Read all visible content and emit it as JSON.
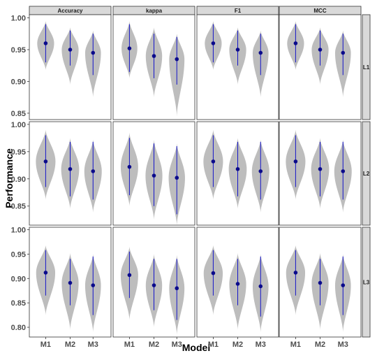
{
  "chart_data": {
    "type": "violin",
    "xlabel": "Model",
    "ylabel": "Performance",
    "metrics": [
      "Accuracy",
      "kappa",
      "F1",
      "MCC"
    ],
    "levels": [
      "L1",
      "L2",
      "L3"
    ],
    "models": [
      "M1",
      "M2",
      "M3"
    ],
    "rows": [
      {
        "level": "L1",
        "ylim": [
          0.84,
          1.005
        ],
        "yticks": [
          "0.85",
          "0.90",
          "0.95",
          "1.00"
        ],
        "ytick_values": [
          0.85,
          0.9,
          0.95,
          1.0
        ],
        "panels": [
          {
            "metric": "Accuracy",
            "values": [
              {
                "model": "M1",
                "mean": 0.96,
                "lo": 0.93,
                "hi": 0.99,
                "vmin": 0.918,
                "vmax": 0.995,
                "width": 0.62
              },
              {
                "model": "M2",
                "mean": 0.95,
                "lo": 0.925,
                "hi": 0.98,
                "vmin": 0.895,
                "vmax": 0.985,
                "width": 0.62
              },
              {
                "model": "M3",
                "mean": 0.945,
                "lo": 0.91,
                "hi": 0.975,
                "vmin": 0.875,
                "vmax": 0.98,
                "width": 0.58
              }
            ]
          },
          {
            "metric": "kappa",
            "values": [
              {
                "model": "M1",
                "mean": 0.952,
                "lo": 0.915,
                "hi": 0.99,
                "vmin": 0.905,
                "vmax": 0.995,
                "width": 0.58
              },
              {
                "model": "M2",
                "mean": 0.94,
                "lo": 0.905,
                "hi": 0.975,
                "vmin": 0.875,
                "vmax": 0.985,
                "width": 0.6
              },
              {
                "model": "M3",
                "mean": 0.935,
                "lo": 0.895,
                "hi": 0.97,
                "vmin": 0.845,
                "vmax": 0.975,
                "width": 0.56
              }
            ]
          },
          {
            "metric": "F1",
            "values": [
              {
                "model": "M1",
                "mean": 0.96,
                "lo": 0.93,
                "hi": 0.99,
                "vmin": 0.918,
                "vmax": 0.995,
                "width": 0.62
              },
              {
                "model": "M2",
                "mean": 0.95,
                "lo": 0.925,
                "hi": 0.98,
                "vmin": 0.895,
                "vmax": 0.985,
                "width": 0.62
              },
              {
                "model": "M3",
                "mean": 0.945,
                "lo": 0.91,
                "hi": 0.975,
                "vmin": 0.875,
                "vmax": 0.98,
                "width": 0.58
              }
            ]
          },
          {
            "metric": "MCC",
            "values": [
              {
                "model": "M1",
                "mean": 0.96,
                "lo": 0.93,
                "hi": 0.99,
                "vmin": 0.918,
                "vmax": 0.995,
                "width": 0.62
              },
              {
                "model": "M2",
                "mean": 0.95,
                "lo": 0.925,
                "hi": 0.98,
                "vmin": 0.895,
                "vmax": 0.985,
                "width": 0.62
              },
              {
                "model": "M3",
                "mean": 0.945,
                "lo": 0.91,
                "hi": 0.975,
                "vmin": 0.875,
                "vmax": 0.98,
                "width": 0.58
              }
            ]
          }
        ]
      },
      {
        "level": "L2",
        "ylim": [
          0.815,
          1.005
        ],
        "yticks": [
          "0.85",
          "0.90",
          "0.95",
          "1.00"
        ],
        "ytick_values": [
          0.85,
          0.9,
          0.95,
          1.0
        ],
        "panels": [
          {
            "metric": "Accuracy",
            "values": [
              {
                "model": "M1",
                "mean": 0.932,
                "lo": 0.885,
                "hi": 0.98,
                "vmin": 0.862,
                "vmax": 0.99,
                "width": 0.72
              },
              {
                "model": "M2",
                "mean": 0.918,
                "lo": 0.868,
                "hi": 0.968,
                "vmin": 0.845,
                "vmax": 0.975,
                "width": 0.66
              },
              {
                "model": "M3",
                "mean": 0.914,
                "lo": 0.862,
                "hi": 0.968,
                "vmin": 0.838,
                "vmax": 0.972,
                "width": 0.64
              }
            ]
          },
          {
            "metric": "kappa",
            "values": [
              {
                "model": "M1",
                "mean": 0.922,
                "lo": 0.87,
                "hi": 0.975,
                "vmin": 0.85,
                "vmax": 0.985,
                "width": 0.64
              },
              {
                "model": "M2",
                "mean": 0.906,
                "lo": 0.85,
                "hi": 0.965,
                "vmin": 0.825,
                "vmax": 0.972,
                "width": 0.62
              },
              {
                "model": "M3",
                "mean": 0.902,
                "lo": 0.835,
                "hi": 0.96,
                "vmin": 0.815,
                "vmax": 0.965,
                "width": 0.6
              }
            ]
          },
          {
            "metric": "F1",
            "values": [
              {
                "model": "M1",
                "mean": 0.932,
                "lo": 0.885,
                "hi": 0.98,
                "vmin": 0.862,
                "vmax": 0.99,
                "width": 0.72
              },
              {
                "model": "M2",
                "mean": 0.918,
                "lo": 0.868,
                "hi": 0.968,
                "vmin": 0.845,
                "vmax": 0.975,
                "width": 0.66
              },
              {
                "model": "M3",
                "mean": 0.914,
                "lo": 0.862,
                "hi": 0.968,
                "vmin": 0.838,
                "vmax": 0.972,
                "width": 0.64
              }
            ]
          },
          {
            "metric": "MCC",
            "values": [
              {
                "model": "M1",
                "mean": 0.932,
                "lo": 0.885,
                "hi": 0.98,
                "vmin": 0.862,
                "vmax": 0.99,
                "width": 0.72
              },
              {
                "model": "M2",
                "mean": 0.918,
                "lo": 0.868,
                "hi": 0.968,
                "vmin": 0.845,
                "vmax": 0.975,
                "width": 0.66
              },
              {
                "model": "M3",
                "mean": 0.914,
                "lo": 0.862,
                "hi": 0.968,
                "vmin": 0.838,
                "vmax": 0.972,
                "width": 0.64
              }
            ]
          }
        ]
      },
      {
        "level": "L3",
        "ylim": [
          0.78,
          1.005
        ],
        "yticks": [
          "0.80",
          "0.85",
          "0.90",
          "0.95",
          "1.00"
        ],
        "ytick_values": [
          0.8,
          0.85,
          0.9,
          0.95,
          1.0
        ],
        "panels": [
          {
            "metric": "Accuracy",
            "values": [
              {
                "model": "M1",
                "mean": 0.912,
                "lo": 0.865,
                "hi": 0.958,
                "vmin": 0.825,
                "vmax": 0.968,
                "width": 0.7
              },
              {
                "model": "M2",
                "mean": 0.891,
                "lo": 0.845,
                "hi": 0.94,
                "vmin": 0.795,
                "vmax": 0.952,
                "width": 0.62
              },
              {
                "model": "M3",
                "mean": 0.886,
                "lo": 0.825,
                "hi": 0.945,
                "vmin": 0.79,
                "vmax": 0.95,
                "width": 0.58
              }
            ]
          },
          {
            "metric": "kappa",
            "values": [
              {
                "model": "M1",
                "mean": 0.907,
                "lo": 0.86,
                "hi": 0.955,
                "vmin": 0.815,
                "vmax": 0.965,
                "width": 0.64
              },
              {
                "model": "M2",
                "mean": 0.886,
                "lo": 0.835,
                "hi": 0.94,
                "vmin": 0.8,
                "vmax": 0.95,
                "width": 0.6
              },
              {
                "model": "M3",
                "mean": 0.88,
                "lo": 0.815,
                "hi": 0.94,
                "vmin": 0.785,
                "vmax": 0.948,
                "width": 0.56
              }
            ]
          },
          {
            "metric": "F1",
            "values": [
              {
                "model": "M1",
                "mean": 0.911,
                "lo": 0.865,
                "hi": 0.958,
                "vmin": 0.825,
                "vmax": 0.968,
                "width": 0.7
              },
              {
                "model": "M2",
                "mean": 0.889,
                "lo": 0.845,
                "hi": 0.94,
                "vmin": 0.795,
                "vmax": 0.952,
                "width": 0.62
              },
              {
                "model": "M3",
                "mean": 0.884,
                "lo": 0.822,
                "hi": 0.945,
                "vmin": 0.79,
                "vmax": 0.95,
                "width": 0.58
              }
            ]
          },
          {
            "metric": "MCC",
            "values": [
              {
                "model": "M1",
                "mean": 0.912,
                "lo": 0.865,
                "hi": 0.958,
                "vmin": 0.825,
                "vmax": 0.968,
                "width": 0.7
              },
              {
                "model": "M2",
                "mean": 0.891,
                "lo": 0.845,
                "hi": 0.94,
                "vmin": 0.795,
                "vmax": 0.952,
                "width": 0.62
              },
              {
                "model": "M3",
                "mean": 0.886,
                "lo": 0.825,
                "hi": 0.945,
                "vmin": 0.79,
                "vmax": 0.95,
                "width": 0.58
              }
            ]
          }
        ]
      }
    ],
    "colors": {
      "violin_fill": "#bdbdbd",
      "interval_line": "#1414c8",
      "mean_point": "#0a0a8a",
      "strip_fill": "#d9d9d9",
      "strip_border": "#333333",
      "panel_border": "#333333",
      "background": "#ffffff"
    },
    "grid": false
  }
}
